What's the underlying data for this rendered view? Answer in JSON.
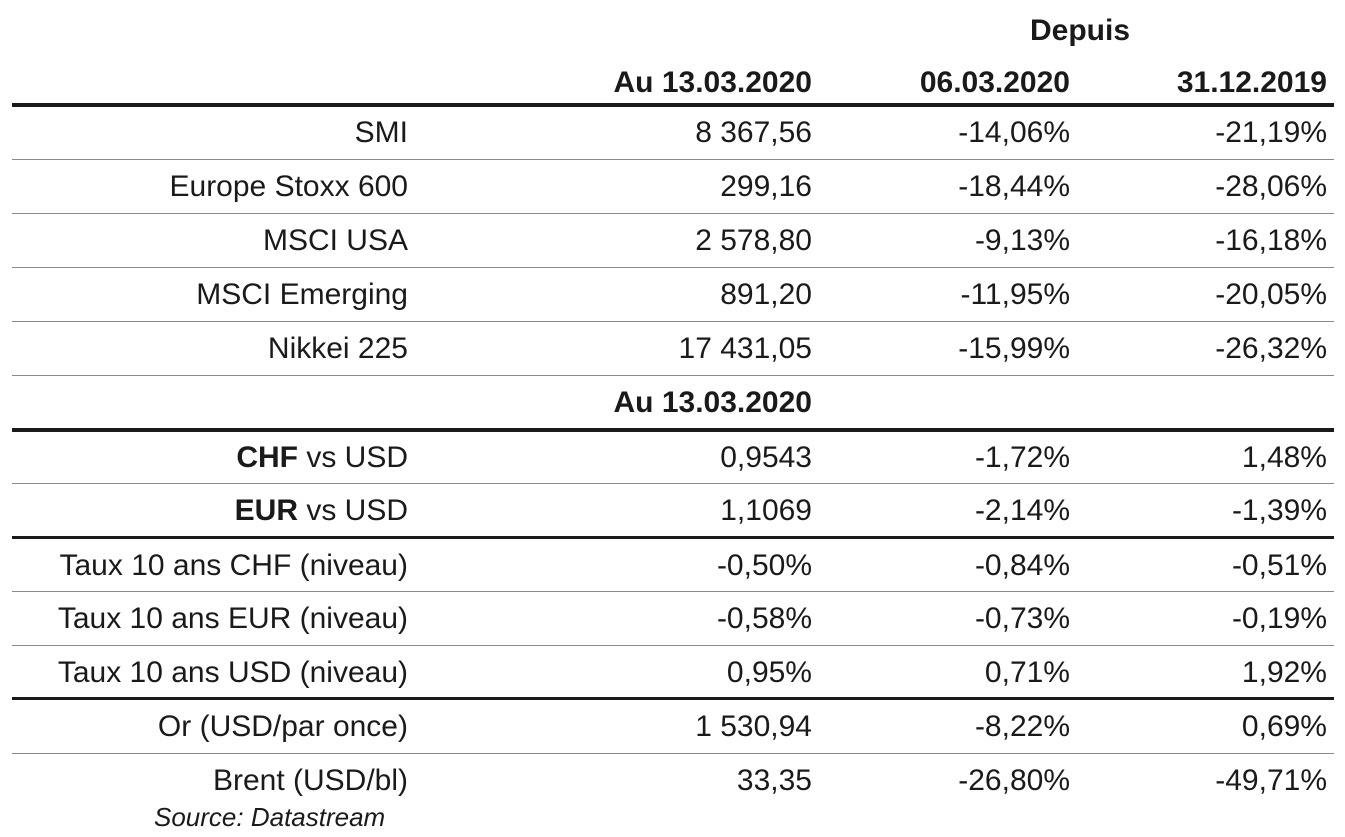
{
  "header": {
    "depuis": "Depuis",
    "col2": "Au 13.03.2020",
    "col3": "06.03.2020",
    "col4": "31.12.2019"
  },
  "indices": [
    {
      "name": "SMI",
      "level": "8 367,56",
      "since_w": "-14,06%",
      "since_y": "-21,19%"
    },
    {
      "name": "Europe Stoxx 600",
      "level": "299,16",
      "since_w": "-18,44%",
      "since_y": "-28,06%"
    },
    {
      "name": "MSCI USA",
      "level": "2 578,80",
      "since_w": "-9,13%",
      "since_y": "-16,18%"
    },
    {
      "name": "MSCI Emerging",
      "level": "891,20",
      "since_w": "-11,95%",
      "since_y": "-20,05%"
    },
    {
      "name": "Nikkei 225",
      "level": "17 431,05",
      "since_w": "-15,99%",
      "since_y": "-26,32%"
    }
  ],
  "subheader": "Au 13.03.2020",
  "fx": [
    {
      "name_bold": "CHF",
      "name_rest": " vs USD",
      "level": "0,9543",
      "since_w": "-1,72%",
      "since_y": "1,48%"
    },
    {
      "name_bold": "EUR",
      "name_rest": " vs USD",
      "level": "1,1069",
      "since_w": "-2,14%",
      "since_y": "-1,39%"
    }
  ],
  "rates": [
    {
      "name": "Taux 10 ans CHF (niveau)",
      "level": "-0,50%",
      "since_w": "-0,84%",
      "since_y": "-0,51%"
    },
    {
      "name": "Taux 10 ans EUR (niveau)",
      "level": "-0,58%",
      "since_w": "-0,73%",
      "since_y": "-0,19%"
    },
    {
      "name": "Taux 10 ans USD (niveau)",
      "level": "0,95%",
      "since_w": "0,71%",
      "since_y": "1,92%"
    }
  ],
  "commodities": [
    {
      "name": "Or (USD/par once)",
      "level": "1 530,94",
      "since_w": "-8,22%",
      "since_y": "0,69%"
    },
    {
      "name": "Brent (USD/bl)",
      "level": "33,35",
      "since_w": "-26,80%",
      "since_y": "-49,71%"
    }
  ],
  "source": "Source: Datastream"
}
